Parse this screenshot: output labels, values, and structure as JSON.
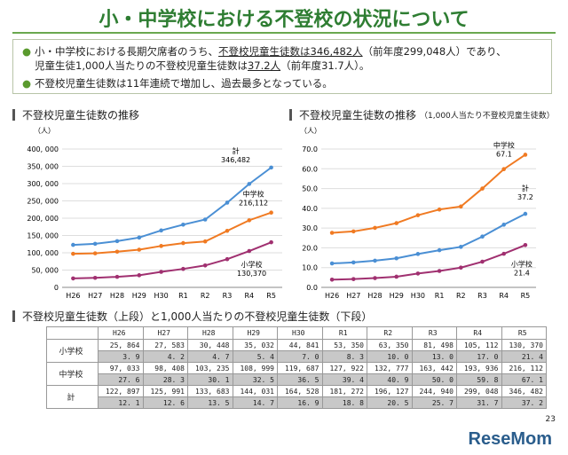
{
  "title": "小・中学校における不登校の状況について",
  "summary": {
    "b1_pre": "小・中学校における長期欠席者のうち、",
    "b1_u1": "不登校児童生徒数は346,482人",
    "b1_mid": "（前年度299,048人）であり、",
    "b1_l2_pre": "児童生徒1,000人当たりの不登校児童生徒数は",
    "b1_u2": "37.2人",
    "b1_post": "（前年度31.7人）。",
    "b2": "不登校児童生徒数は11年連続で増加し、過去最多となっている。"
  },
  "sections": {
    "left": "不登校児童生徒数の推移",
    "right": "不登校児童生徒数の推移",
    "right_note": "（1,000人当たり不登校児童生徒数）",
    "table": "不登校児童生徒数（上段）と1,000人当たりの不登校児童生徒数（下段）"
  },
  "chart_data": [
    {
      "type": "line",
      "ylabel": "（人）",
      "ylim": [
        0,
        400000
      ],
      "yticks": [
        "0",
        "50, 000",
        "100, 000",
        "150, 000",
        "200, 000",
        "250, 000",
        "300, 000",
        "350, 000",
        "400, 000"
      ],
      "grid": true,
      "categories": [
        "H26",
        "H27",
        "H28",
        "H29",
        "H30",
        "R1",
        "R2",
        "R3",
        "R4",
        "R5"
      ],
      "series": [
        {
          "name": "計",
          "color": "#4a8fd4",
          "values": [
            122897,
            125991,
            133683,
            144031,
            164528,
            181272,
            196127,
            244940,
            299048,
            346482
          ],
          "end_label": "346,482"
        },
        {
          "name": "中学校",
          "color": "#f07a22",
          "values": [
            97033,
            98408,
            103235,
            108999,
            119687,
            127922,
            132777,
            163442,
            193936,
            216112
          ],
          "end_label": "216,112"
        },
        {
          "name": "小学校",
          "color": "#a03070",
          "values": [
            25864,
            27583,
            30448,
            35032,
            44841,
            53350,
            63350,
            81498,
            105112,
            130370
          ],
          "end_label": "130,370"
        }
      ]
    },
    {
      "type": "line",
      "ylabel": "（人）",
      "ylim": [
        0,
        70
      ],
      "yticks": [
        "0.0",
        "10.0",
        "20.0",
        "30.0",
        "40.0",
        "50.0",
        "60.0",
        "70.0"
      ],
      "grid": true,
      "categories": [
        "H26",
        "H27",
        "H28",
        "H29",
        "H30",
        "R1",
        "R2",
        "R3",
        "R4",
        "R5"
      ],
      "series": [
        {
          "name": "中学校",
          "color": "#f07a22",
          "values": [
            27.6,
            28.3,
            30.1,
            32.5,
            36.5,
            39.4,
            40.9,
            50.0,
            59.8,
            67.1
          ],
          "end_label": "67.1"
        },
        {
          "name": "計",
          "color": "#4a8fd4",
          "values": [
            12.1,
            12.6,
            13.5,
            14.7,
            16.9,
            18.8,
            20.5,
            25.7,
            31.7,
            37.2
          ],
          "end_label": "37.2"
        },
        {
          "name": "小学校",
          "color": "#a03070",
          "values": [
            3.9,
            4.2,
            4.7,
            5.4,
            7.0,
            8.3,
            10.0,
            13.0,
            17.0,
            21.4
          ],
          "end_label": "21.4"
        }
      ]
    }
  ],
  "table": {
    "headers": [
      "H26",
      "H27",
      "H28",
      "H29",
      "H30",
      "R1",
      "R2",
      "R3",
      "R4",
      "R5"
    ],
    "rows": [
      {
        "label": "小学校",
        "counts": [
          "25, 864",
          "27, 583",
          "30, 448",
          "35, 032",
          "44, 841",
          "53, 350",
          "63, 350",
          "81, 498",
          "105, 112",
          "130, 370"
        ],
        "rates": [
          "3. 9",
          "4. 2",
          "4. 7",
          "5. 4",
          "7. 0",
          "8. 3",
          "10. 0",
          "13. 0",
          "17. 0",
          "21. 4"
        ]
      },
      {
        "label": "中学校",
        "counts": [
          "97, 033",
          "98, 408",
          "103, 235",
          "108, 999",
          "119, 687",
          "127, 922",
          "132, 777",
          "163, 442",
          "193, 936",
          "216, 112"
        ],
        "rates": [
          "27. 6",
          "28. 3",
          "30. 1",
          "32. 5",
          "36. 5",
          "39. 4",
          "40. 9",
          "50. 0",
          "59. 8",
          "67. 1"
        ]
      },
      {
        "label": "計",
        "counts": [
          "122, 897",
          "125, 991",
          "133, 683",
          "144, 031",
          "164, 528",
          "181, 272",
          "196, 127",
          "244, 940",
          "299, 048",
          "346, 482"
        ],
        "rates": [
          "12. 1",
          "12. 6",
          "13. 5",
          "14. 7",
          "16. 9",
          "18. 8",
          "20. 5",
          "25. 7",
          "31. 7",
          "37. 2"
        ]
      }
    ]
  },
  "page_number": "23",
  "logo": "ReseMom"
}
